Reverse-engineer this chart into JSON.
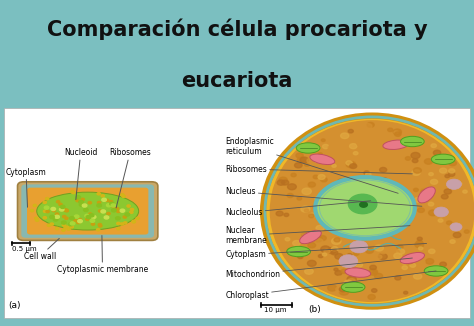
{
  "title_line1": "Comparación célula procariota y",
  "title_line2": "eucariota",
  "title_fontsize": 15,
  "title_color": "#111111",
  "bg_color": "#7bbfc0",
  "panel_bg": "#dce8e4",
  "prokaryote": {
    "wall_color": "#c8a86a",
    "membrane_color": "#88b8b0",
    "cytoplasm_color": "#e8a030",
    "nucleoid_color": "#8cc830",
    "scale_label": "0.5 μm",
    "panel_label": "(a)"
  },
  "eukaryote": {
    "outer_color": "#f0b830",
    "outer_border": "#d09010",
    "membrane_color": "#88c0b8",
    "cytoplasm_color": "#d49030",
    "nucleus_fill": "#a0d870",
    "nucleus_border": "#60b8b8",
    "nucleolus_color": "#50b050",
    "nucleolus_dot": "#207020",
    "er_color": "#50b0b0",
    "mito_color": "#e87888",
    "mito_border": "#c05060",
    "chloro_color": "#80c840",
    "chloro_border": "#50a020",
    "scale_label": "10 μm",
    "panel_label": "(b)"
  },
  "label_fontsize": 5.5,
  "arrow_color": "#555555"
}
